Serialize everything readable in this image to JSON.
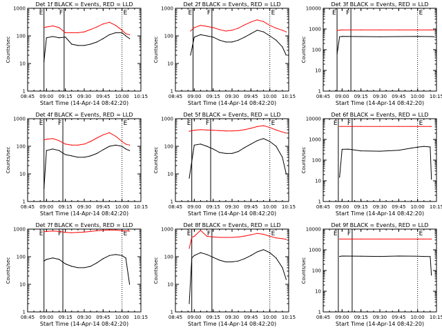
{
  "colors": {
    "events": "#000000",
    "lld": "#ff0000",
    "axes": "#000000",
    "background": "#ffffff"
  },
  "shared": {
    "xlabel": "Start Time (14-Apr-14 08:42:20)",
    "ylabel": "Counts/sec",
    "x_tick_labels": [
      "08:45",
      "09:00",
      "09:15",
      "09:30",
      "09:45",
      "10:00",
      "10:15"
    ],
    "y_tick_labels": [
      "1",
      "10",
      "100",
      "1000",
      "10000"
    ],
    "marker_labels": {
      "left": "E",
      "mid": "F",
      "right": "E"
    }
  },
  "chart_data": [
    {
      "type": "line",
      "title": "Det 1f BLACK = Events, RED = LLD",
      "xlabel": "Start Time (14-Apr-14 08:42:20)",
      "ylabel": "Counts/sec",
      "x": [
        "08:58",
        "09:00",
        "09:05",
        "09:10",
        "09:15",
        "09:20",
        "09:25",
        "09:30",
        "09:35",
        "09:40",
        "09:45",
        "09:50",
        "09:55",
        "10:00",
        "10:03",
        "10:06"
      ],
      "ylim": [
        1,
        1000
      ],
      "yscale": "log",
      "ymax_label": "1000",
      "x_markers": [
        "08:58",
        "09:14",
        "10:00"
      ],
      "marker_style": [
        "solid",
        "solid",
        "dotted"
      ],
      "series": [
        {
          "color": "red",
          "values": [
            200,
            210,
            230,
            200,
            130,
            130,
            130,
            140,
            170,
            210,
            270,
            310,
            240,
            160,
            120,
            110
          ]
        },
        {
          "color": "black",
          "values": [
            12,
            85,
            95,
            85,
            90,
            50,
            45,
            45,
            50,
            60,
            80,
            110,
            130,
            130,
            100,
            80
          ]
        }
      ]
    },
    {
      "type": "line",
      "title": "Det 2f BLACK = Events, RED = LLD",
      "xlabel": "Start Time (14-Apr-14 08:42:20)",
      "ylabel": "Counts/sec",
      "x": [
        "08:57",
        "09:00",
        "09:05",
        "09:10",
        "09:15",
        "09:20",
        "09:25",
        "09:30",
        "09:35",
        "09:40",
        "09:45",
        "09:50",
        "09:55",
        "10:00",
        "10:05",
        "10:10",
        "10:13"
      ],
      "ylim": [
        1,
        1000
      ],
      "yscale": "log",
      "ymax_label": "1000",
      "x_markers": [
        "08:59",
        "09:14",
        "10:00"
      ],
      "marker_style": [
        "solid",
        "solid",
        "dotted"
      ],
      "series": [
        {
          "color": "red",
          "values": [
            150,
            200,
            240,
            220,
            200,
            170,
            150,
            160,
            190,
            250,
            320,
            380,
            330,
            240,
            190,
            160,
            140
          ]
        },
        {
          "color": "black",
          "values": [
            20,
            90,
            110,
            100,
            90,
            70,
            60,
            60,
            70,
            90,
            120,
            160,
            140,
            100,
            70,
            40,
            20
          ]
        }
      ]
    },
    {
      "type": "line",
      "title": "Det 3f BLACK = Events, RED = LLD",
      "xlabel": "Start Time (14-Apr-14 08:42:20)",
      "ylabel": "Counts/sec",
      "x": [
        "08:56",
        "08:58",
        "09:00",
        "09:15",
        "09:30",
        "09:45",
        "10:00",
        "10:10",
        "10:13"
      ],
      "ylim": [
        1,
        10000
      ],
      "yscale": "log",
      "ymax_label": "10000",
      "x_markers": [
        "08:56",
        "09:07",
        "10:00"
      ],
      "marker_style": [
        "solid",
        "solid",
        "dotted"
      ],
      "series": [
        {
          "color": "red",
          "values": [
            850,
            880,
            900,
            900,
            900,
            900,
            900,
            900,
            900
          ]
        },
        {
          "color": "black",
          "values": [
            60,
            420,
            440,
            430,
            420,
            430,
            440,
            430,
            420
          ]
        }
      ]
    },
    {
      "type": "line",
      "title": "Det 4f BLACK = Events, RED = LLD",
      "xlabel": "Start Time (14-Apr-14 08:42:20)",
      "ylabel": "Counts/sec",
      "x": [
        "08:58",
        "09:00",
        "09:05",
        "09:10",
        "09:15",
        "09:20",
        "09:25",
        "09:30",
        "09:35",
        "09:40",
        "09:45",
        "09:50",
        "09:55",
        "10:00",
        "10:03",
        "10:06"
      ],
      "ylim": [
        1,
        1000
      ],
      "yscale": "log",
      "ymax_label": "1000",
      "x_markers": [
        "08:58",
        "09:13",
        "10:00"
      ],
      "marker_style": [
        "solid",
        "solid",
        "dotted"
      ],
      "series": [
        {
          "color": "red",
          "values": [
            170,
            180,
            190,
            160,
            120,
            110,
            110,
            120,
            150,
            200,
            260,
            310,
            230,
            150,
            120,
            110
          ]
        },
        {
          "color": "black",
          "values": [
            3,
            70,
            80,
            70,
            50,
            45,
            40,
            40,
            45,
            55,
            75,
            100,
            110,
            100,
            80,
            70
          ]
        }
      ]
    },
    {
      "type": "line",
      "title": "Det 5f BLACK = Events, RED = LLD",
      "xlabel": "Start Time (14-Apr-14 08:42:20)",
      "ylabel": "Counts/sec",
      "x": [
        "08:56",
        "09:00",
        "09:05",
        "09:10",
        "09:15",
        "09:20",
        "09:25",
        "09:30",
        "09:35",
        "09:40",
        "09:45",
        "09:50",
        "09:55",
        "10:00",
        "10:05",
        "10:10",
        "10:13"
      ],
      "ylim": [
        1,
        1000
      ],
      "yscale": "log",
      "ymax_label": "1000",
      "x_markers": [
        "08:58",
        "09:13",
        "10:00"
      ],
      "marker_style": [
        "solid",
        "solid",
        "dotted"
      ],
      "series": [
        {
          "color": "red",
          "values": [
            350,
            380,
            400,
            390,
            380,
            370,
            360,
            360,
            370,
            400,
            450,
            520,
            560,
            480,
            390,
            330,
            300
          ]
        },
        {
          "color": "black",
          "values": [
            7,
            110,
            120,
            100,
            80,
            60,
            55,
            55,
            65,
            90,
            120,
            160,
            190,
            150,
            100,
            40,
            10
          ]
        }
      ]
    },
    {
      "type": "line",
      "title": "Det 6f BLACK = Events, RED = LLD",
      "xlabel": "Start Time (14-Apr-14 08:42:20)",
      "ylabel": "Counts/sec",
      "x": [
        "08:58",
        "09:00",
        "09:05",
        "09:15",
        "09:30",
        "09:45",
        "09:55",
        "10:00",
        "10:05",
        "10:10",
        "10:11"
      ],
      "ylim": [
        1,
        10000
      ],
      "yscale": "log",
      "ymax_label": "10000",
      "x_markers": [
        "08:57",
        "09:08",
        "10:00"
      ],
      "marker_style": [
        "solid",
        "solid",
        "dotted"
      ],
      "series": [
        {
          "color": "red",
          "values": [
            4200,
            4200,
            4200,
            4200,
            4200,
            4200,
            4200,
            4200,
            4200,
            4200,
            4200
          ]
        },
        {
          "color": "black",
          "values": [
            15,
            330,
            340,
            280,
            270,
            300,
            380,
            420,
            460,
            430,
            12
          ]
        }
      ]
    },
    {
      "type": "line",
      "title": "Det 7f BLACK = Events, RED = LLD",
      "xlabel": "Start Time (14-Apr-14 08:42:20)",
      "ylabel": "Counts/sec",
      "x": [
        "08:58",
        "09:00",
        "09:05",
        "09:10",
        "09:15",
        "09:20",
        "09:25",
        "09:30",
        "09:35",
        "09:40",
        "09:45",
        "09:50",
        "09:55",
        "10:00",
        "10:03",
        "10:06"
      ],
      "ylim": [
        1,
        1000
      ],
      "yscale": "log",
      "ymax_label": "1000",
      "x_markers": [
        "08:58",
        "09:13",
        "10:00"
      ],
      "marker_style": [
        "solid",
        "solid",
        "dotted"
      ],
      "series": [
        {
          "color": "red",
          "values": [
            800,
            820,
            850,
            820,
            760,
            740,
            760,
            780,
            820,
            870,
            900,
            930,
            920,
            880,
            860,
            840
          ]
        },
        {
          "color": "black",
          "values": [
            70,
            80,
            90,
            80,
            55,
            45,
            40,
            40,
            45,
            60,
            85,
            110,
            120,
            110,
            90,
            10
          ]
        }
      ]
    },
    {
      "type": "line",
      "title": "Det 8f BLACK = Events, RED = LLD",
      "xlabel": "Start Time (14-Apr-14 08:42:20)",
      "ylabel": "Counts/sec",
      "x": [
        "08:56",
        "08:58",
        "09:00",
        "09:05",
        "09:10",
        "09:15",
        "09:20",
        "09:25",
        "09:30",
        "09:35",
        "09:40",
        "09:45",
        "09:50",
        "09:55",
        "10:00",
        "10:05",
        "10:10",
        "10:13"
      ],
      "ylim": [
        1,
        1000
      ],
      "yscale": "log",
      "ymax_label": "1000",
      "x_markers": [
        "08:58",
        "09:14",
        "10:00"
      ],
      "marker_style": [
        "solid",
        "solid",
        "dotted"
      ],
      "series": [
        {
          "color": "red",
          "values": [
            200,
            500,
            550,
            900,
            550,
            520,
            500,
            500,
            500,
            520,
            560,
            620,
            700,
            650,
            550,
            480,
            450,
            430
          ]
        },
        {
          "color": "black",
          "values": [
            2,
            90,
            110,
            140,
            120,
            95,
            75,
            65,
            65,
            70,
            85,
            110,
            150,
            180,
            140,
            90,
            40,
            15
          ]
        }
      ]
    },
    {
      "type": "line",
      "title": "Det 9f BLACK = Events, RED = LLD",
      "xlabel": "Start Time (14-Apr-14 08:42:20)",
      "ylabel": "Counts/sec",
      "x": [
        "08:58",
        "09:00",
        "09:15",
        "09:30",
        "09:45",
        "10:00",
        "10:05",
        "10:10",
        "10:11"
      ],
      "ylim": [
        1,
        10000
      ],
      "yscale": "log",
      "ymax_label": "10000",
      "x_markers": [
        "08:57",
        "09:08",
        "10:00"
      ],
      "marker_style": [
        "solid",
        "solid",
        "dotted"
      ],
      "series": [
        {
          "color": "red",
          "values": [
            3300,
            3300,
            3300,
            3300,
            3300,
            3300,
            3300,
            3300,
            3300
          ]
        },
        {
          "color": "black",
          "values": [
            480,
            500,
            490,
            480,
            500,
            490,
            480,
            470,
            60
          ]
        }
      ]
    }
  ]
}
